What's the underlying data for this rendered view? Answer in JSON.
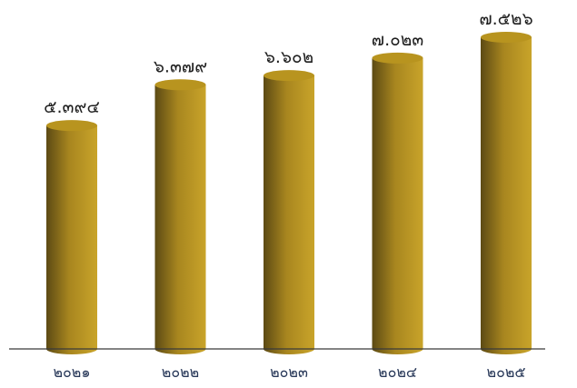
{
  "chart_data": {
    "type": "bar",
    "categories": [
      "๒๐๒๑",
      "๒๐๒๒",
      "๒๐๒๓",
      "๒๐๒๔",
      "๒๐๒๕"
    ],
    "values": [
      5394,
      6379,
      6602,
      7023,
      7526
    ],
    "value_labels": [
      "๕.๓๙๔",
      "๖.๓๗๙",
      "๖.๖๐๒",
      "๗.๐๒๓",
      "๗.๕๒๖"
    ],
    "title": "",
    "xlabel": "",
    "ylabel": "",
    "ylim": [
      0,
      7800
    ],
    "grid": false,
    "legend": "none",
    "bar_style": "3d-cylinder",
    "colors": {
      "bar_light": "#c9a42a",
      "bar_mid": "#a8861f",
      "bar_dark": "#5c4a14",
      "bar_top": "#b8941f",
      "axis": "#3a3a3a",
      "tick_text": "#2a3a5a",
      "value_text": "#1f1f1f"
    }
  }
}
